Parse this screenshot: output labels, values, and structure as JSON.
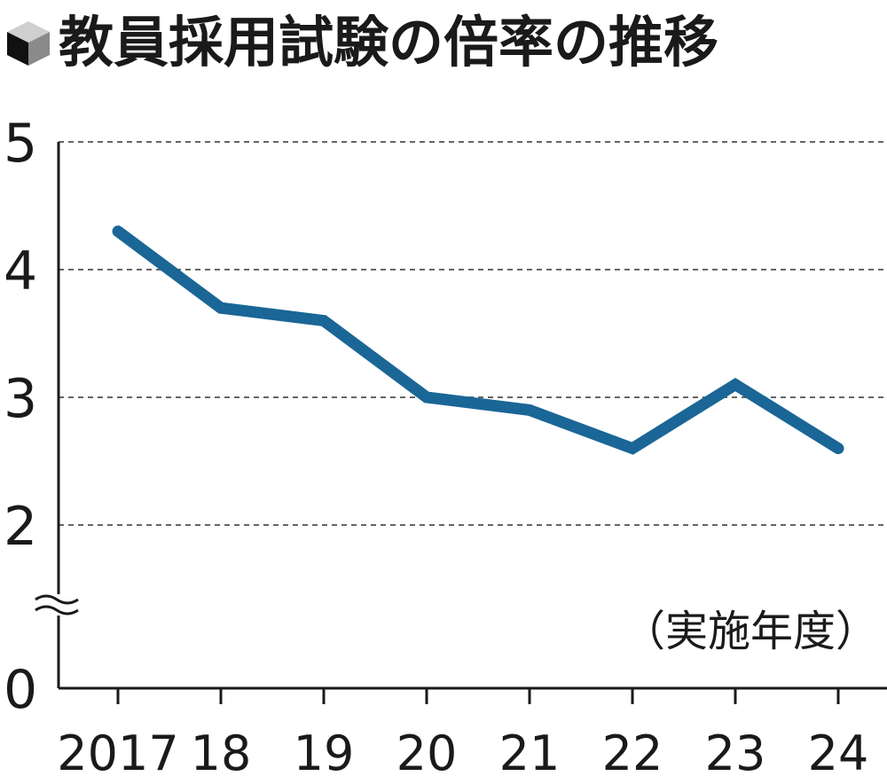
{
  "title": "教員採用試験の倍率の推移",
  "icon": "cube-icon",
  "colors": {
    "line": "#1a6696",
    "text": "#1a1a1a",
    "grid": "#666666",
    "axis": "#1a1a1a"
  },
  "chart_data": {
    "type": "line",
    "title": "教員採用試験の倍率の推移",
    "xlabel": "（実施年度）",
    "ylabel": "",
    "categories": [
      "2017",
      "18",
      "19",
      "20",
      "21",
      "22",
      "23",
      "24"
    ],
    "series": [
      {
        "values": [
          4.3,
          3.7,
          3.6,
          3.0,
          2.9,
          2.6,
          3.1,
          2.6
        ]
      }
    ],
    "y_ticks": [
      "0",
      "2",
      "3",
      "4",
      "5"
    ],
    "ylim": [
      0,
      5
    ],
    "axis_break": true,
    "grid": true,
    "grid_style": "dashed"
  }
}
